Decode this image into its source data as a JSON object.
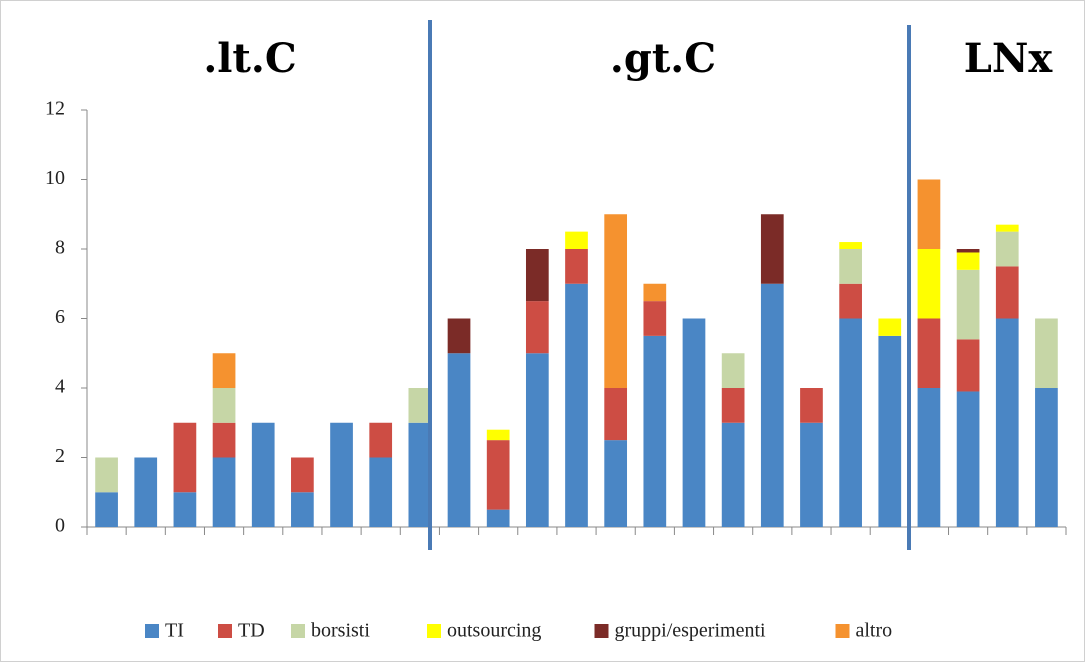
{
  "chart_data": {
    "type": "stacked_bar",
    "categories": [
      null,
      null,
      null,
      null,
      null,
      null,
      null,
      null,
      null,
      null,
      null,
      null,
      null,
      null,
      null,
      null,
      null,
      null,
      null,
      null,
      null,
      null,
      null,
      null,
      null
    ],
    "group_labels": [
      ".lt.C",
      ".gt.C",
      "LNx"
    ],
    "ylim": [
      0,
      12
    ],
    "yticks": [
      0,
      2,
      4,
      6,
      8,
      10,
      12
    ],
    "grid": false,
    "legend": "bottom",
    "series": [
      {
        "name": "TI",
        "color": "#4a86c5",
        "values": [
          1,
          2,
          1,
          2,
          3,
          1,
          3,
          2,
          3,
          5,
          0.5,
          5,
          7,
          2.5,
          5.5,
          6,
          3,
          7,
          3,
          6,
          5.5,
          4,
          3.9,
          6,
          4
        ]
      },
      {
        "name": "TD",
        "color": "#cd4d44",
        "values": [
          0,
          0,
          2,
          1,
          0,
          1,
          0,
          1,
          0,
          0,
          2,
          1.5,
          1,
          1.5,
          1,
          0,
          1,
          0,
          1,
          1,
          0,
          2,
          1.5,
          1.5,
          0
        ]
      },
      {
        "name": "borsisti",
        "color": "#c6d6a6",
        "values": [
          1,
          0,
          0,
          1,
          0,
          0,
          0,
          0,
          1,
          0,
          0,
          0,
          0,
          0,
          0,
          0,
          1,
          0,
          0,
          1,
          0,
          0,
          2,
          1,
          2
        ]
      },
      {
        "name": "outsourcing",
        "color": "#ffff00",
        "values": [
          0,
          0,
          0,
          0,
          0,
          0,
          0,
          0,
          0,
          0,
          0.3,
          0,
          0.5,
          0,
          0,
          0,
          0,
          0,
          0,
          0.2,
          0.5,
          2,
          0.5,
          0.2,
          0
        ]
      },
      {
        "name": "gruppi/esperimenti",
        "color": "#7b2b27",
        "values": [
          0,
          0,
          0,
          0,
          0,
          0,
          0,
          0,
          0,
          1,
          0,
          1.5,
          0,
          0,
          0,
          0,
          0,
          2,
          0,
          0,
          0,
          0,
          0.1,
          0,
          0
        ]
      },
      {
        "name": "altro",
        "color": "#f5922f",
        "values": [
          0,
          0,
          0,
          1,
          0,
          0,
          0,
          0,
          0,
          0,
          0,
          0,
          0,
          5,
          0.5,
          0,
          0,
          0,
          0,
          0,
          0,
          2,
          0,
          0,
          0
        ]
      }
    ]
  }
}
